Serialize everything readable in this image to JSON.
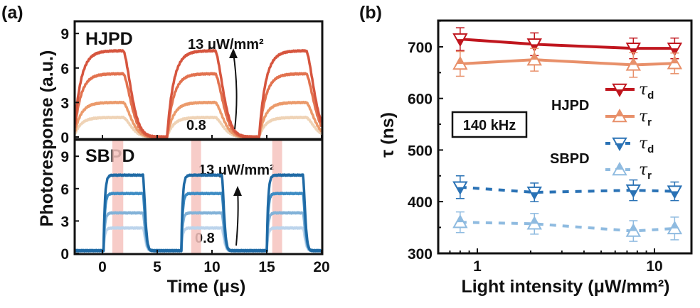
{
  "chart_data": [
    {
      "panel_label": "(a)",
      "type": "line",
      "xlabel": "Time (μs)",
      "ylabel": "Photoresponse (a.u.)",
      "xlim": [
        -2.5,
        20
      ],
      "xticks": [
        0,
        5,
        10,
        15,
        20
      ],
      "subplots": [
        {
          "label": "HJPD",
          "ylim": [
            -0.2,
            10
          ],
          "yticks": [
            0,
            3,
            6,
            9
          ],
          "annotation_high": "13 μW/mm²",
          "annotation_low": "0.8",
          "pulse_on_us": [
            -2.6,
            5.9,
            14.3
          ],
          "pulse_off_us": [
            1.9,
            10.3,
            18.6
          ],
          "baseline": 0,
          "series_plateaus": [
            1.7,
            3.0,
            5.5,
            7.5
          ],
          "colors": [
            "#efd3b6",
            "#eb9a6b",
            "#e2724f",
            "#d6553e"
          ]
        },
        {
          "label": "SBPD",
          "ylim": [
            0,
            10.5
          ],
          "yticks": [
            0,
            3,
            6,
            9
          ],
          "annotation_high": "13 μW/mm²",
          "annotation_low": "0.8",
          "pulse_on_us": [
            0.1,
            7.2,
            15.0
          ],
          "pulse_off_us": [
            3.7,
            10.9,
            18.3
          ],
          "baseline": 0.25,
          "series_plateaus": [
            2.1,
            3.5,
            5.3,
            7.0
          ],
          "colors": [
            "#bcd4ec",
            "#82b2d8",
            "#3d8cc4",
            "#1f6aa5"
          ],
          "shaded_bands_us": [
            [
              0.9,
              1.9
            ],
            [
              8.1,
              9.0
            ],
            [
              15.5,
              16.4
            ]
          ],
          "band_color": "#f6c3be"
        }
      ]
    },
    {
      "panel_label": "(b)",
      "type": "line",
      "xlabel": "Light intensity (μW/mm²)",
      "ylabel": "τ (ns)",
      "xscale": "log",
      "xlim": [
        0.6,
        16
      ],
      "ylim": [
        300,
        750
      ],
      "xticks": [
        1,
        10
      ],
      "yticks": [
        300,
        400,
        500,
        600,
        700
      ],
      "x": [
        0.8,
        2.1,
        7.6,
        13
      ],
      "annotation_box": "140 kHz",
      "legend_groups": [
        "HJPD",
        "SBPD"
      ],
      "legend_position": "right",
      "series": [
        {
          "group": "HJPD",
          "name": "τ",
          "sub": "d",
          "marker": "down-triangle-half",
          "line": "solid",
          "color": "#c0161e",
          "values": [
            715,
            705,
            697,
            697
          ],
          "errors": [
            22,
            22,
            20,
            20
          ]
        },
        {
          "group": "HJPD",
          "name": "τ",
          "sub": "r",
          "marker": "up-triangle-half",
          "line": "solid",
          "color": "#e8906a",
          "values": [
            667,
            675,
            665,
            668
          ],
          "errors": [
            24,
            22,
            24,
            20
          ]
        },
        {
          "group": "SBPD",
          "name": "τ",
          "sub": "d",
          "marker": "down-triangle-half",
          "line": "dashed",
          "color": "#2a72b5",
          "values": [
            428,
            418,
            422,
            420
          ],
          "errors": [
            22,
            18,
            20,
            18
          ]
        },
        {
          "group": "SBPD",
          "name": "τ",
          "sub": "r",
          "marker": "up-triangle-half",
          "line": "dashed",
          "color": "#8fbbe0",
          "values": [
            360,
            357,
            343,
            348
          ],
          "errors": [
            20,
            20,
            20,
            22
          ]
        }
      ]
    }
  ]
}
